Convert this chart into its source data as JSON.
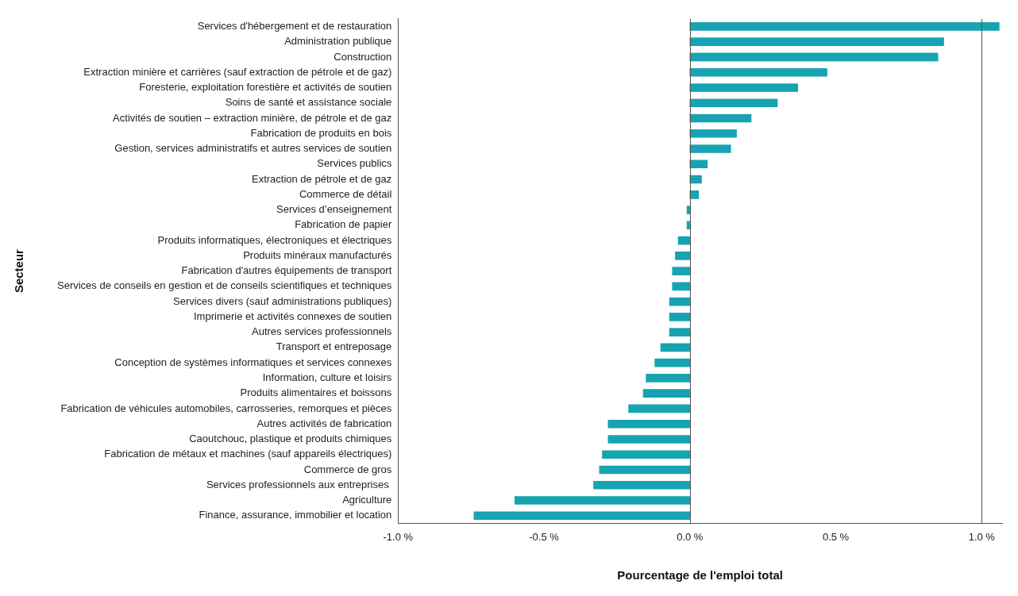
{
  "chart_data": {
    "type": "bar",
    "orientation": "horizontal",
    "xlabel": "Pourcentage de l'emploi total",
    "ylabel": "Secteur",
    "categories": [
      "Services d'hébergement et de restauration",
      "Administration publique",
      "Construction",
      "Extraction minière et carrières (sauf extraction de pétrole et de gaz)",
      "Foresterie, exploitation forestière et activités de soutien",
      "Soins de santé et assistance sociale",
      "Activités de soutien – extraction minière, de pétrole et de gaz",
      "Fabrication de produits en bois",
      "Gestion, services administratifs et autres services de soutien",
      "Services publics",
      "Extraction de pétrole et de gaz",
      "Commerce de détail",
      "Services d’enseignement",
      "Fabrication de papier",
      "Produits informatiques, électroniques et électriques",
      "Produits minéraux manufacturés",
      "Fabrication d'autres équipements de transport",
      "Services de conseils en gestion et de conseils scientifiques et techniques",
      "Services divers (sauf administrations publiques)",
      "Imprimerie et activités connexes de soutien",
      "Autres services professionnels",
      "Transport et entreposage",
      "Conception de systèmes informatiques et services connexes",
      "Information, culture et loisirs",
      "Produits alimentaires et boissons",
      "Fabrication de véhicules automobiles, carrosseries, remorques et pièces",
      "Autres activités de fabrication",
      "Caoutchouc, plastique et produits chimiques",
      "Fabrication de métaux et machines (sauf appareils électriques)",
      "Commerce de gros",
      "Services professionnels aux entreprises ",
      "Agriculture",
      "Finance, assurance, immobilier et location"
    ],
    "values": [
      1.06,
      0.87,
      0.85,
      0.47,
      0.37,
      0.3,
      0.21,
      0.16,
      0.14,
      0.06,
      0.04,
      0.03,
      -0.01,
      -0.01,
      -0.04,
      -0.05,
      -0.06,
      -0.06,
      -0.07,
      -0.07,
      -0.07,
      -0.1,
      -0.12,
      -0.15,
      -0.16,
      -0.21,
      -0.28,
      -0.28,
      -0.3,
      -0.31,
      -0.33,
      -0.6,
      -0.74
    ],
    "color": "#17a3b1",
    "xlim": [
      -1,
      1.07
    ],
    "ref_lines": [
      {
        "axis": "x",
        "value": 0,
        "color": "#555555"
      },
      {
        "axis": "x",
        "value": 1,
        "color": "#555555"
      }
    ],
    "xticks": [
      {
        "value": -1,
        "label": "-1.0 %"
      },
      {
        "value": -0.5,
        "label": "-0.5 %"
      },
      {
        "value": 0,
        "label": "0.0 %"
      },
      {
        "value": 0.5,
        "label": "0.5 %"
      },
      {
        "value": 1,
        "label": "1.0 %"
      }
    ],
    "grid": false,
    "legend": false
  }
}
